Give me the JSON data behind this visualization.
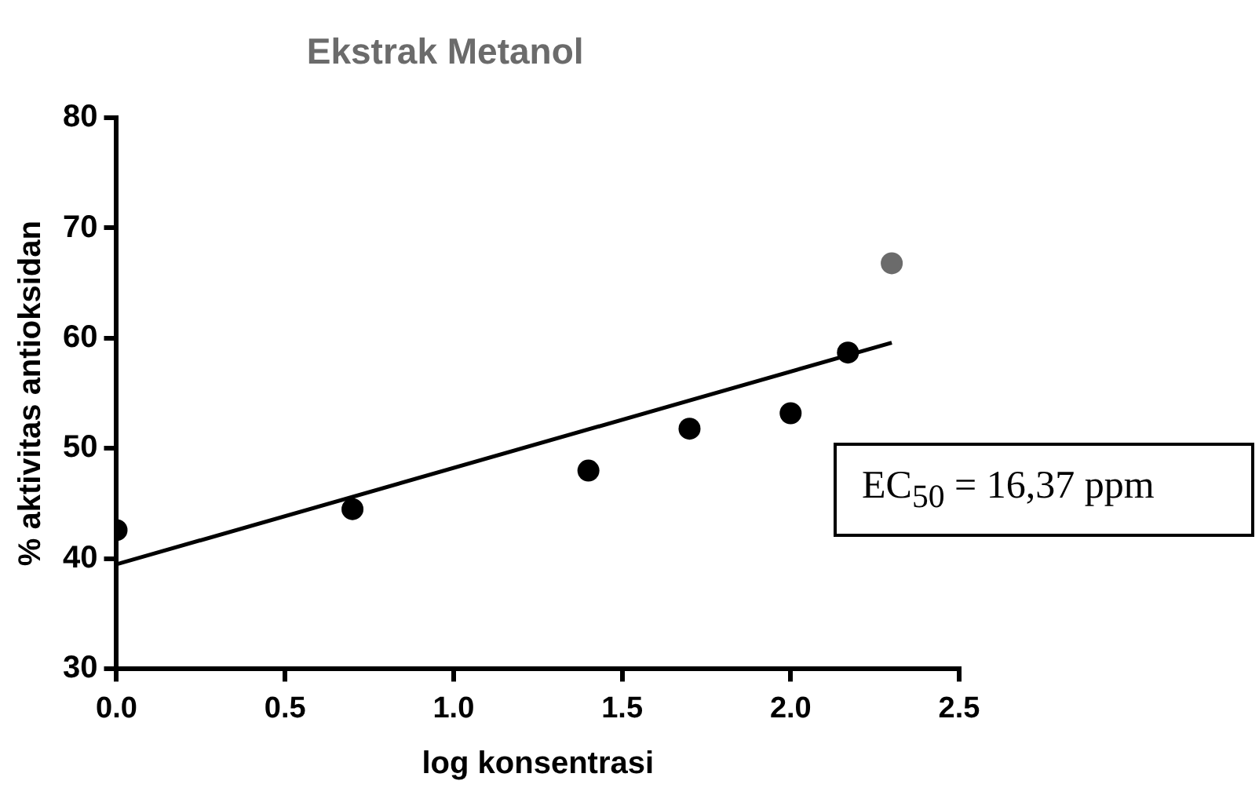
{
  "chart_data": {
    "type": "scatter",
    "title": "Ekstrak Metanol",
    "xlabel": "log konsentrasi",
    "ylabel": "% aktivitas antioksidan",
    "annotations": [
      "EC$_{50}$ = 16,37 ppm"
    ],
    "xlim": [
      0,
      2.5
    ],
    "xticks": [
      {
        "value": 0,
        "label": "0.0"
      },
      0.5,
      {
        "value": 1,
        "label": "1.0"
      },
      1.5,
      {
        "value": 2,
        "label": "2.0"
      },
      2.5
    ],
    "ylim": [
      30,
      80
    ],
    "yticks": [
      30,
      40,
      50,
      60,
      70,
      80
    ],
    "grid": false,
    "legend": false,
    "marker": "circle",
    "series": [
      {
        "type": "scatter",
        "x": [
          0,
          0.7,
          1.4,
          1.7,
          2.0,
          2.17,
          2.3
        ],
        "values": [
          42.6,
          44.5,
          48.0,
          51.8,
          53.2,
          58.7,
          66.8
        ],
        "colors": [
          "#000000",
          "#000000",
          "#000000",
          "#000000",
          "#000000",
          "#000000",
          "#6b6b6b"
        ]
      },
      {
        "type": "line",
        "x": [
          0,
          2.3
        ],
        "values": [
          39.5,
          59.6
        ],
        "color": "#000000",
        "line_style": "solid",
        "marker": "none"
      }
    ]
  }
}
